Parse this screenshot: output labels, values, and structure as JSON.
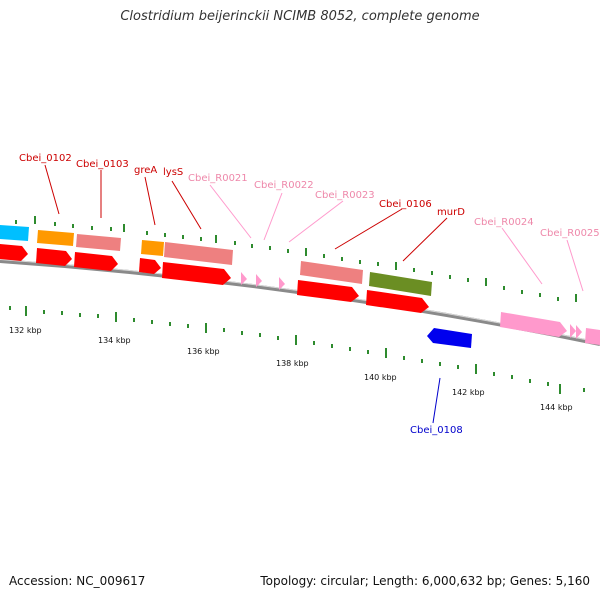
{
  "title": "Clostridium beijerinckii NCIMB 8052, complete genome",
  "accession": "Accession: NC_009617",
  "summary": "Topology: circular; Length: 6,000,632 bp; Genes: 5,160",
  "colors": {
    "backbone": "#8a8a8a",
    "tick": "#2e8b2e",
    "cds": "#ff0000",
    "gene_orange": "#ff9900",
    "gene_salmon": "#ee8080",
    "gene_olive": "#6b8e23",
    "gene_pink": "#ff99cc",
    "gene_cyan": "#00bfff",
    "gene_blue": "#0000ee",
    "label_red": "#cc0000",
    "label_pink": "#ee88aa",
    "label_blue": "#0000cc"
  },
  "tick_labels": [
    "132 kbp",
    "134 kbp",
    "136 kbp",
    "138 kbp",
    "140 kbp",
    "142 kbp",
    "144 kbp"
  ],
  "gene_labels": [
    {
      "text": "Cbei_0102",
      "color": "label_red"
    },
    {
      "text": "Cbei_0103",
      "color": "label_red"
    },
    {
      "text": "greA",
      "color": "label_red"
    },
    {
      "text": "lysS",
      "color": "label_red"
    },
    {
      "text": "Cbei_R0021",
      "color": "label_pink"
    },
    {
      "text": "Cbei_R0022",
      "color": "label_pink"
    },
    {
      "text": "Cbei_R0023",
      "color": "label_pink"
    },
    {
      "text": "Cbei_0106",
      "color": "label_red"
    },
    {
      "text": "murD",
      "color": "label_red"
    },
    {
      "text": "Cbei_R0024",
      "color": "label_pink"
    },
    {
      "text": "Cbei_R0025",
      "color": "label_pink"
    },
    {
      "text": "Cbei_0108",
      "color": "label_blue"
    }
  ]
}
